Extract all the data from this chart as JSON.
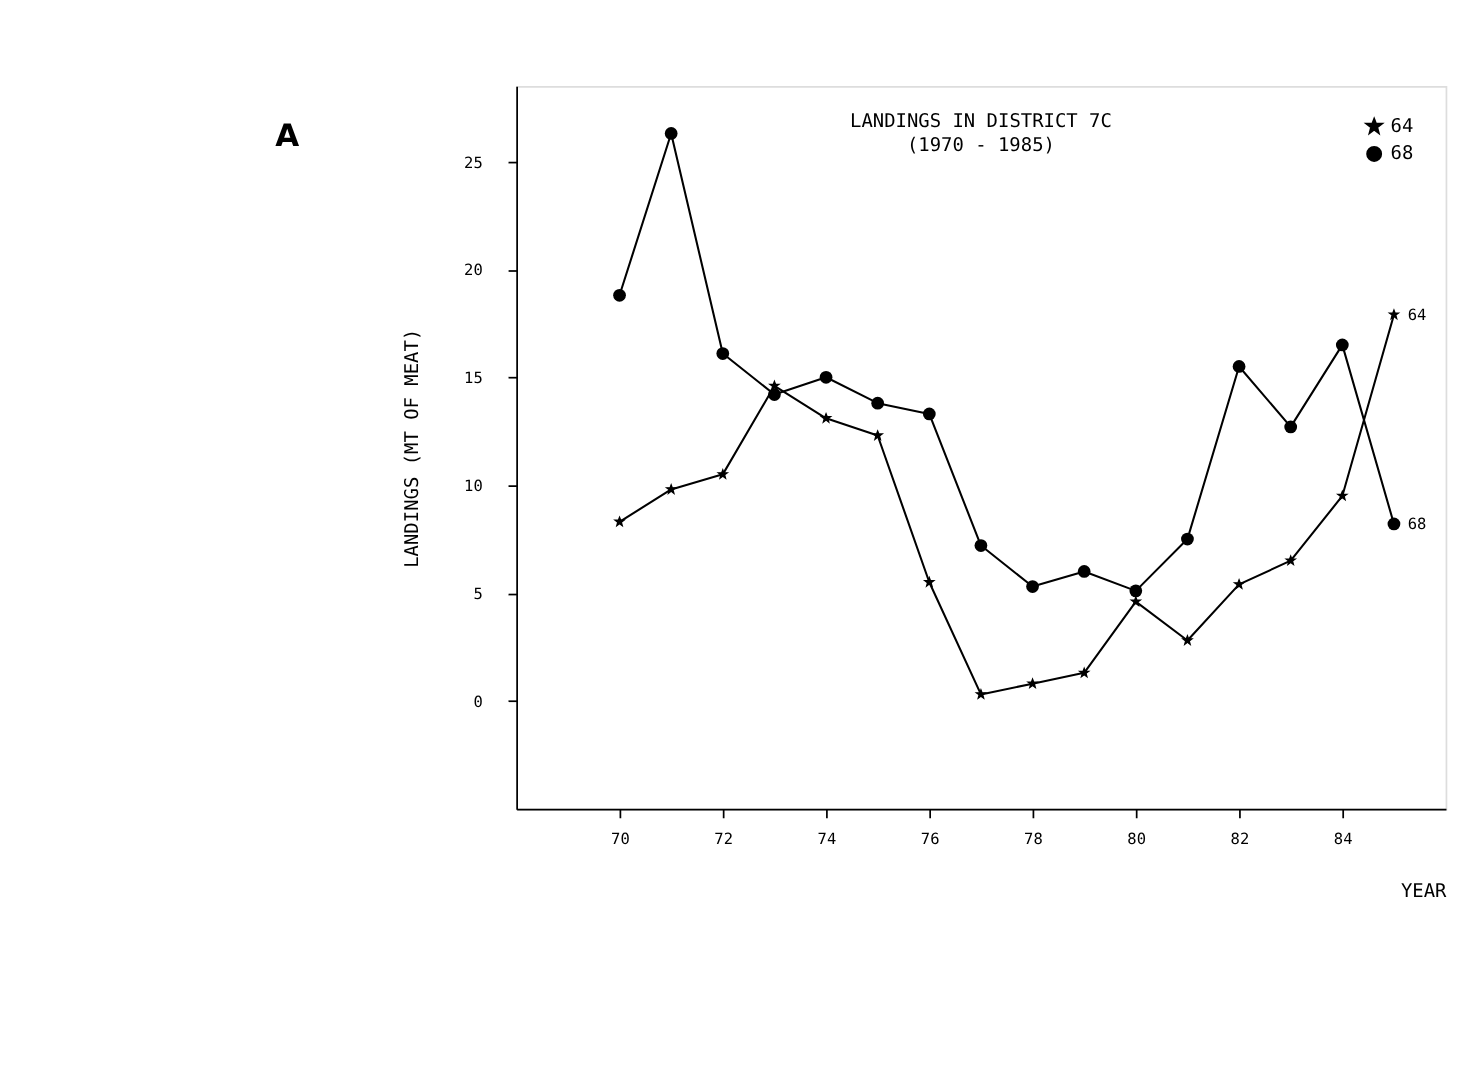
{
  "chart_data": {
    "type": "line",
    "title": "LANDINGS IN DISTRICT 7C",
    "subtitle": "(1970 - 1985)",
    "xlabel": "YEAR",
    "ylabel": "LANDINGS (MT OF MEAT)",
    "x": [
      70,
      71,
      72,
      73,
      74,
      75,
      76,
      77,
      78,
      79,
      80,
      81,
      82,
      83,
      84,
      85
    ],
    "series": [
      {
        "name": "64",
        "color": "#000000",
        "marker": "star",
        "values": [
          8.3,
          9.8,
          10.5,
          14.6,
          13.1,
          12.3,
          5.5,
          0.3,
          0.8,
          1.3,
          4.6,
          2.8,
          5.4,
          6.5,
          9.5,
          17.9
        ]
      },
      {
        "name": "68",
        "color": "#000000",
        "marker": "circle",
        "values": [
          18.8,
          26.3,
          16.1,
          14.2,
          15.0,
          13.8,
          13.3,
          7.2,
          5.3,
          6.0,
          5.1,
          7.5,
          15.5,
          12.7,
          16.5,
          8.2
        ]
      }
    ],
    "xlim": [
      68,
      86
    ],
    "xticks": [
      70,
      72,
      74,
      76,
      78,
      80,
      82,
      84
    ],
    "ylim": [
      -5,
      28.5
    ],
    "yticks": [
      0,
      5,
      10,
      15,
      20,
      25
    ],
    "grid": false,
    "legend": "top right",
    "line_style": "solid",
    "annotations": [
      "A"
    ]
  }
}
